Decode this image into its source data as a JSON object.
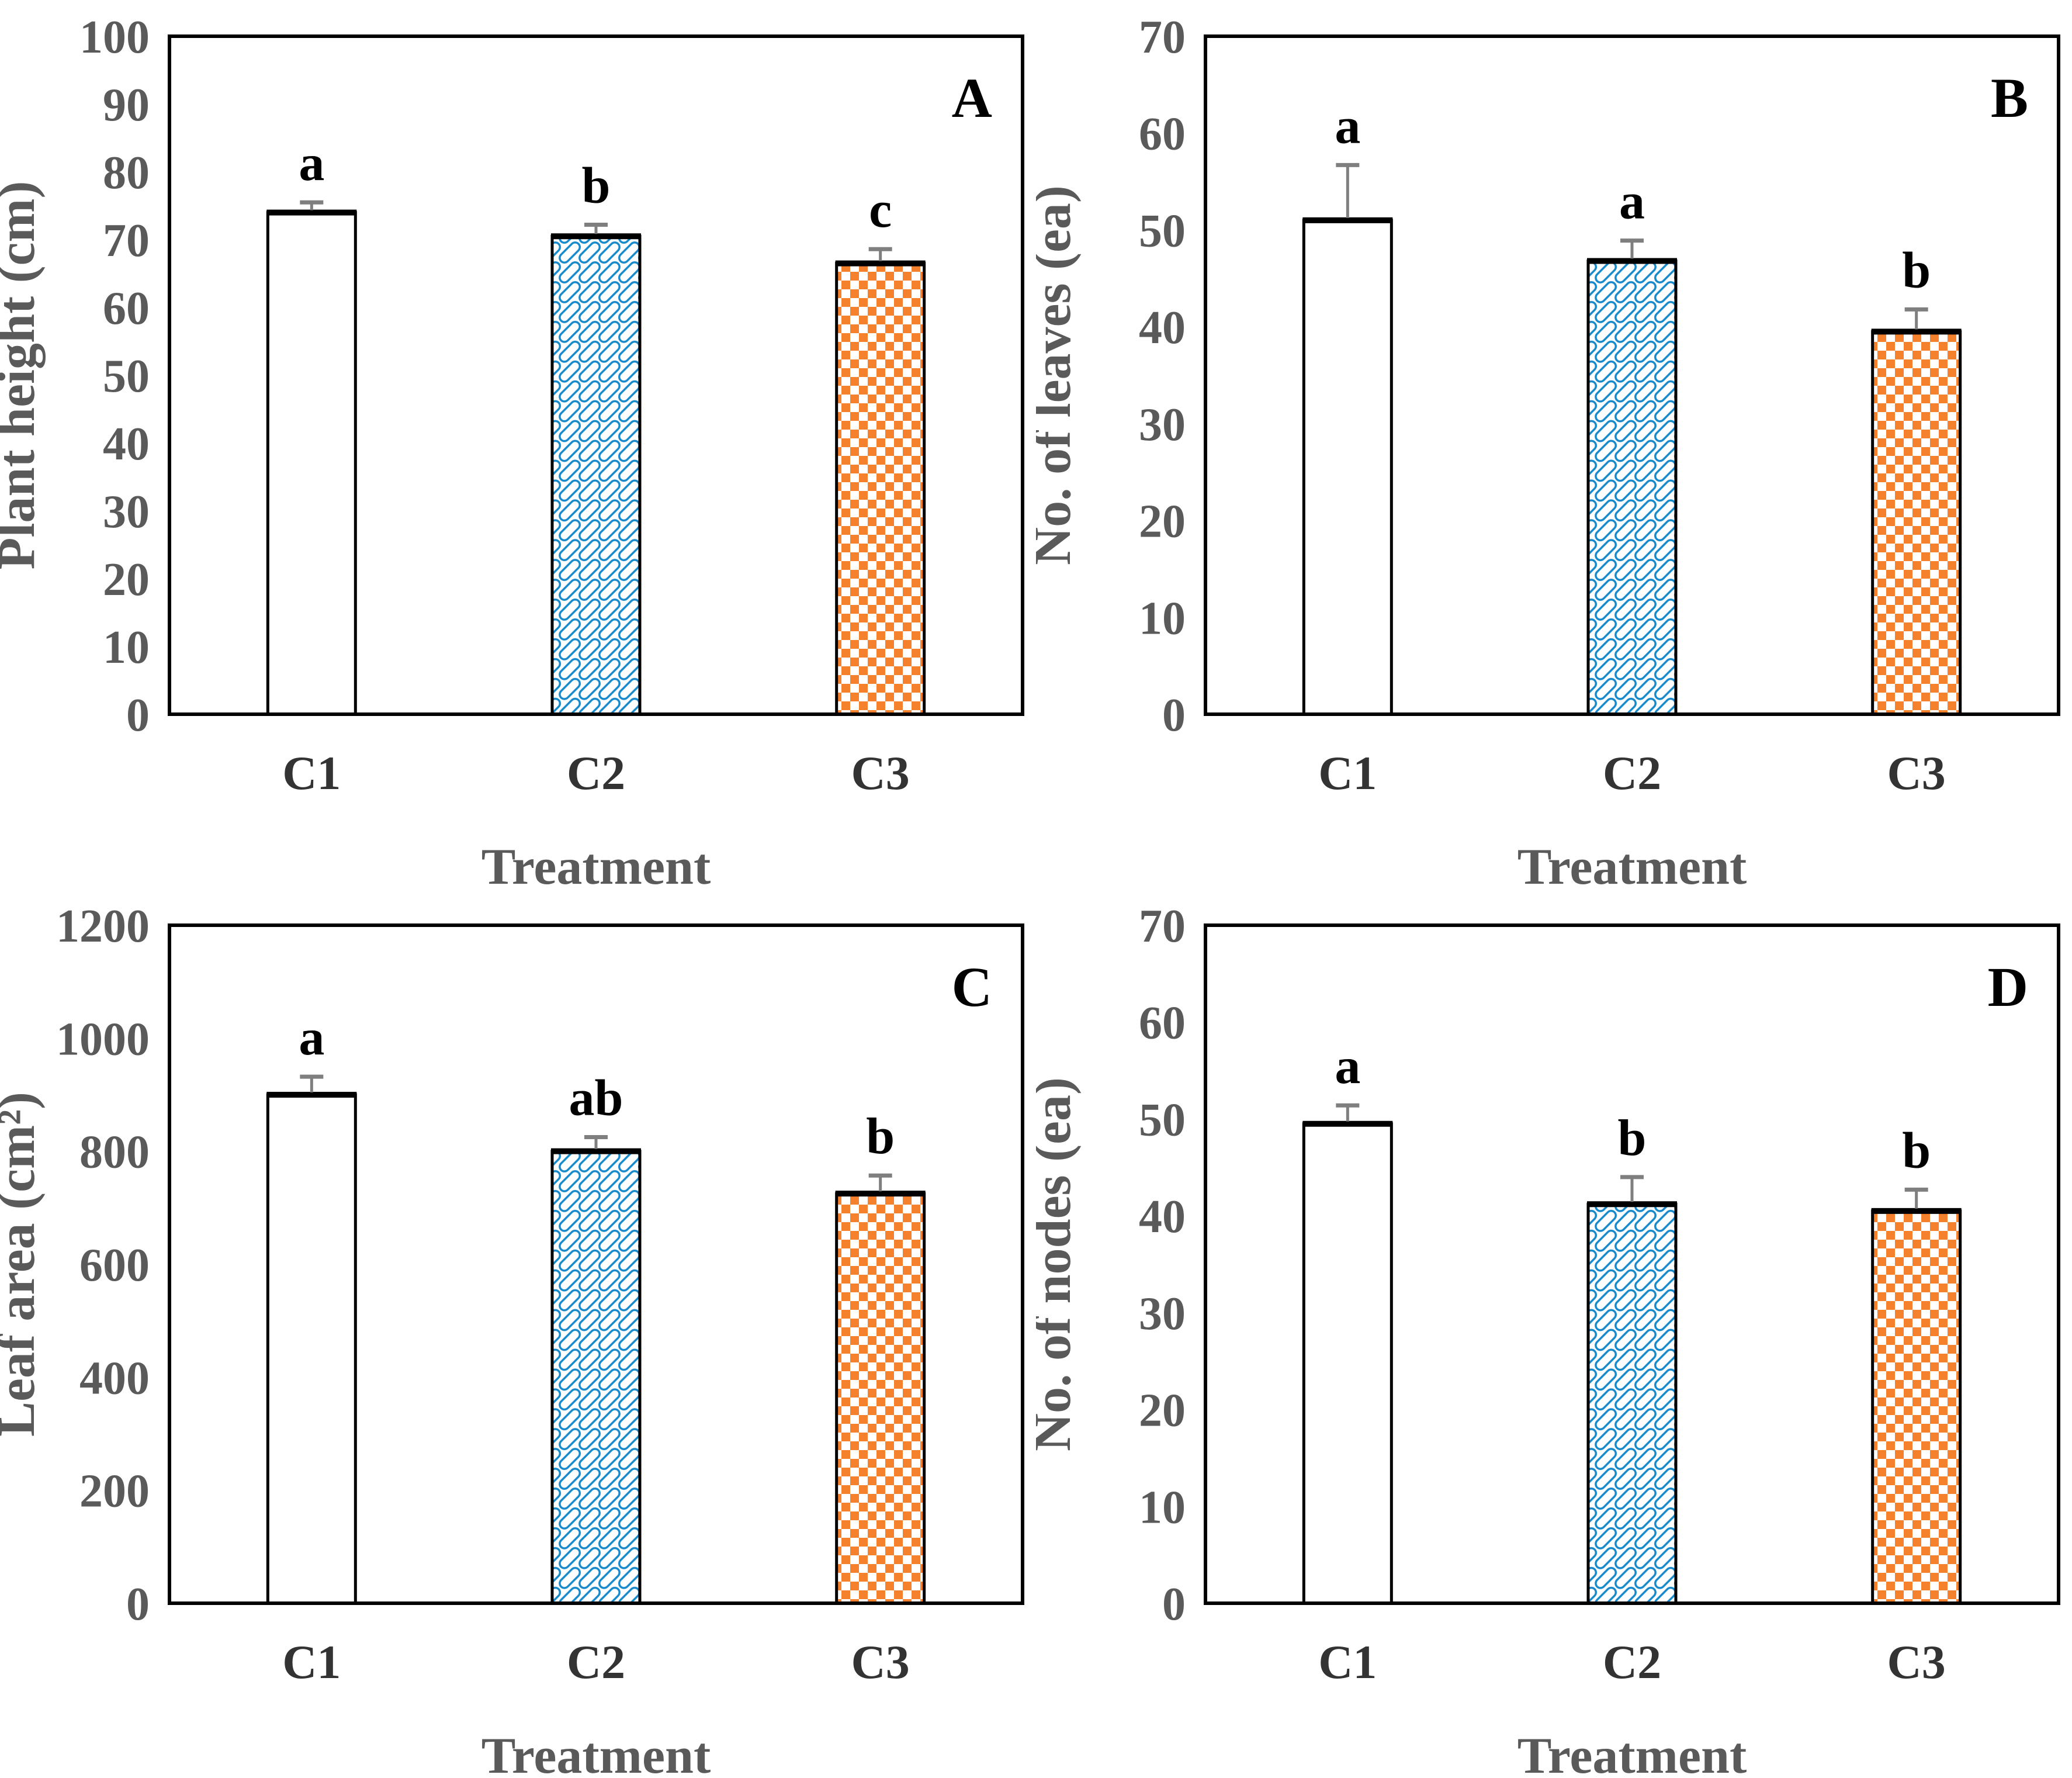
{
  "figure": {
    "colors": {
      "axis_frame": "#000000",
      "bar_border": "#000000",
      "tick_text": "#5a5a5a",
      "axis_title_text": "#5a5a5a",
      "category_text": "#333333",
      "sig_letter_text": "#000000",
      "panel_letter_text": "#000000",
      "error_bar": "#7f7f7f",
      "blue_pattern": "#1689CB",
      "orange_pattern": "#F5812D",
      "white_bar_fill": "#ffffff"
    }
  },
  "chart_data": [
    {
      "type": "bar",
      "panel_letter": "A",
      "ylabel": "Plant height (cm)",
      "xlabel": "Treatment",
      "ylim": [
        0,
        100
      ],
      "y_step": 10,
      "grid": false,
      "legend": "none",
      "categories": [
        "C1",
        "C2",
        "C3"
      ],
      "values": [
        74,
        70.5,
        66.5
      ],
      "errors_up": [
        1.5,
        1.7,
        2.1
      ],
      "sig_letters": [
        "a",
        "b",
        "c"
      ],
      "bar_styles": [
        "white",
        "blue-weave",
        "orange-checker"
      ]
    },
    {
      "type": "bar",
      "panel_letter": "B",
      "ylabel": "No. of leaves (ea)",
      "xlabel": "Treatment",
      "ylim": [
        0,
        70
      ],
      "y_step": 10,
      "grid": false,
      "legend": "none",
      "categories": [
        "C1",
        "C2",
        "C3"
      ],
      "values": [
        51,
        46.8,
        39.5
      ],
      "errors_up": [
        5.7,
        2.1,
        2.3
      ],
      "sig_letters": [
        "a",
        "a",
        "b"
      ],
      "bar_styles": [
        "white",
        "blue-weave",
        "orange-checker"
      ]
    },
    {
      "type": "bar",
      "panel_letter": "C",
      "ylabel": "Leaf area (cm²)",
      "xlabel": "Treatment",
      "ylim": [
        0,
        1200
      ],
      "y_step": 200,
      "grid": false,
      "legend": "none",
      "categories": [
        "C1",
        "C2",
        "C3"
      ],
      "values": [
        900,
        800,
        725
      ],
      "errors_up": [
        32,
        25,
        32
      ],
      "sig_letters": [
        "a",
        "ab",
        "b"
      ],
      "bar_styles": [
        "white",
        "blue-weave",
        "orange-checker"
      ]
    },
    {
      "type": "bar",
      "panel_letter": "D",
      "ylabel": "No. of nodes (ea)",
      "xlabel": "Treatment",
      "ylim": [
        0,
        70
      ],
      "y_step": 10,
      "grid": false,
      "legend": "none",
      "categories": [
        "C1",
        "C2",
        "C3"
      ],
      "values": [
        49.5,
        41.2,
        40.5
      ],
      "errors_up": [
        1.9,
        2.8,
        2.2
      ],
      "sig_letters": [
        "a",
        "b",
        "b"
      ],
      "bar_styles": [
        "white",
        "blue-weave",
        "orange-checker"
      ]
    }
  ]
}
